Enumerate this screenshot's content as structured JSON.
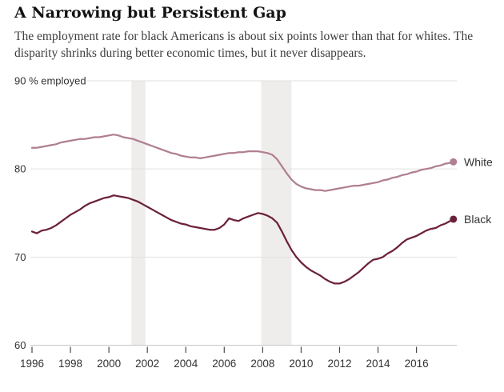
{
  "header": {
    "title": "A Narrowing but Persistent Gap",
    "subtitle_lines": [
      "The employment rate for black Americans is about six points lower than that for whites. The",
      "disparity shrinks during better economic times, but it never disappears."
    ]
  },
  "chart_data": {
    "type": "line",
    "title": "A Narrowing but Persistent Gap",
    "ylabel": "% employed",
    "xlabel": "",
    "grid": true,
    "legend_position": "right-of-line-ends",
    "x_axis": {
      "range": [
        1996,
        2018.1
      ],
      "tick_years": [
        1996,
        1998,
        2000,
        2002,
        2004,
        2006,
        2008,
        2010,
        2012,
        2014,
        2016
      ]
    },
    "y_axis": {
      "range": [
        60,
        90
      ],
      "ticks": [
        {
          "value": 90,
          "label": "90 % employed"
        },
        {
          "value": 80,
          "label": "80"
        },
        {
          "value": 70,
          "label": "70"
        },
        {
          "value": 60,
          "label": "60"
        }
      ]
    },
    "recession_bands": [
      {
        "start": 2001.17,
        "end": 2001.9
      },
      {
        "start": 2007.92,
        "end": 2009.5
      }
    ],
    "x": [
      1996,
      1996.25,
      1996.5,
      1996.75,
      1997,
      1997.25,
      1997.5,
      1997.75,
      1998,
      1998.25,
      1998.5,
      1998.75,
      1999,
      1999.25,
      1999.5,
      1999.75,
      2000,
      2000.25,
      2000.5,
      2000.75,
      2001,
      2001.25,
      2001.5,
      2001.75,
      2002,
      2002.25,
      2002.5,
      2002.75,
      2003,
      2003.25,
      2003.5,
      2003.75,
      2004,
      2004.25,
      2004.5,
      2004.75,
      2005,
      2005.25,
      2005.5,
      2005.75,
      2006,
      2006.25,
      2006.5,
      2006.75,
      2007,
      2007.25,
      2007.5,
      2007.75,
      2008,
      2008.25,
      2008.5,
      2008.75,
      2009,
      2009.25,
      2009.5,
      2009.75,
      2010,
      2010.25,
      2010.5,
      2010.75,
      2011,
      2011.25,
      2011.5,
      2011.75,
      2012,
      2012.25,
      2012.5,
      2012.75,
      2013,
      2013.25,
      2013.5,
      2013.75,
      2014,
      2014.25,
      2014.5,
      2014.75,
      2015,
      2015.25,
      2015.5,
      2015.75,
      2016,
      2016.25,
      2016.5,
      2016.75,
      2017,
      2017.25,
      2017.5,
      2017.75,
      2017.92
    ],
    "series": [
      {
        "name": "White",
        "color": "#b07e92",
        "values": [
          82.4,
          82.4,
          82.5,
          82.6,
          82.7,
          82.8,
          83.0,
          83.1,
          83.2,
          83.3,
          83.4,
          83.4,
          83.5,
          83.6,
          83.6,
          83.7,
          83.8,
          83.9,
          83.8,
          83.6,
          83.5,
          83.4,
          83.2,
          83.0,
          82.8,
          82.6,
          82.4,
          82.2,
          82.0,
          81.8,
          81.7,
          81.5,
          81.4,
          81.3,
          81.3,
          81.2,
          81.3,
          81.4,
          81.5,
          81.6,
          81.7,
          81.8,
          81.8,
          81.9,
          81.9,
          82.0,
          82.0,
          82.0,
          81.9,
          81.8,
          81.6,
          81.1,
          80.3,
          79.5,
          78.8,
          78.3,
          78.0,
          77.8,
          77.7,
          77.6,
          77.6,
          77.5,
          77.6,
          77.7,
          77.8,
          77.9,
          78.0,
          78.1,
          78.1,
          78.2,
          78.3,
          78.4,
          78.5,
          78.7,
          78.8,
          79.0,
          79.1,
          79.3,
          79.4,
          79.6,
          79.7,
          79.9,
          80.0,
          80.1,
          80.3,
          80.4,
          80.6,
          80.7,
          80.8
        ]
      },
      {
        "name": "Black",
        "color": "#6b2139",
        "values": [
          72.9,
          72.7,
          73.0,
          73.1,
          73.3,
          73.6,
          74.0,
          74.4,
          74.8,
          75.1,
          75.4,
          75.8,
          76.1,
          76.3,
          76.5,
          76.7,
          76.8,
          77.0,
          76.9,
          76.8,
          76.7,
          76.5,
          76.3,
          76.0,
          75.7,
          75.4,
          75.1,
          74.8,
          74.5,
          74.2,
          74.0,
          73.8,
          73.7,
          73.5,
          73.4,
          73.3,
          73.2,
          73.1,
          73.1,
          73.3,
          73.7,
          74.4,
          74.2,
          74.1,
          74.4,
          74.6,
          74.8,
          75.0,
          74.9,
          74.7,
          74.4,
          73.9,
          72.9,
          71.8,
          70.8,
          70.0,
          69.4,
          68.9,
          68.5,
          68.2,
          67.9,
          67.5,
          67.2,
          67.0,
          67.0,
          67.2,
          67.5,
          67.9,
          68.3,
          68.8,
          69.3,
          69.7,
          69.8,
          70.0,
          70.4,
          70.7,
          71.1,
          71.6,
          72.0,
          72.2,
          72.4,
          72.7,
          73.0,
          73.2,
          73.3,
          73.6,
          73.8,
          74.1,
          74.3
        ]
      }
    ],
    "colors": {
      "gridline": "#e2e0df",
      "baseline": "#c9c7c5",
      "tick": "#4a4a4a",
      "axis_text": "#333333",
      "recession_band": "#efedec",
      "legend_text": "#333333"
    }
  }
}
